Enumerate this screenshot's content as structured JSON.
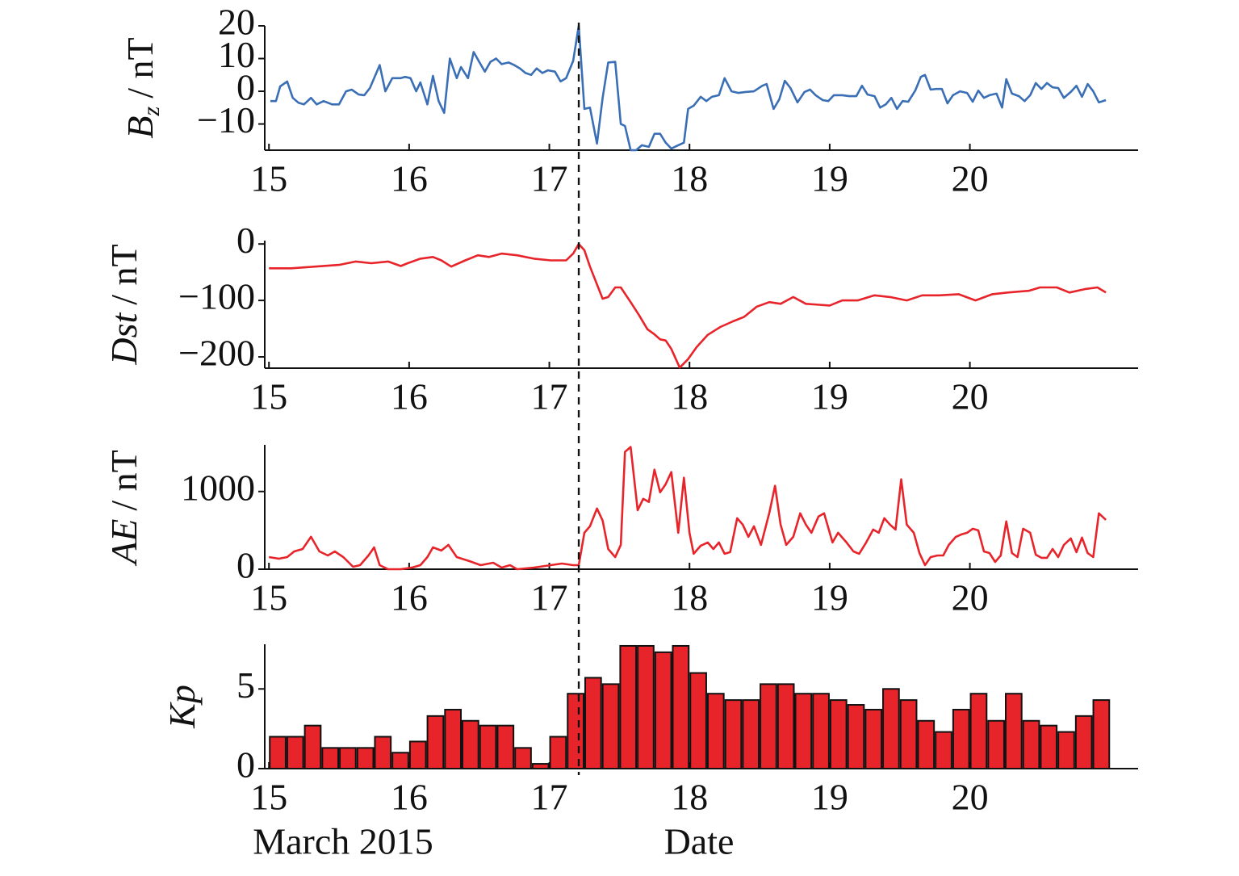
{
  "chart_data": [
    {
      "type": "line",
      "ylabel_symbol": "B",
      "ylabel_subscript": "z",
      "ylabel_unit": "/ nT",
      "color": "#3a6fb5",
      "xlim": [
        14.97,
        21.2
      ],
      "xticks": [
        15,
        16,
        17,
        18,
        19,
        20
      ],
      "ylim": [
        -18,
        20
      ],
      "yticks": [
        20,
        10,
        0,
        {
          "value": -10,
          "label": "−10"
        }
      ],
      "vline": 17.21,
      "x": [
        15.01,
        15.05,
        15.08,
        15.13,
        15.17,
        15.21,
        15.25,
        15.3,
        15.34,
        15.39,
        15.45,
        15.5,
        15.55,
        15.59,
        15.64,
        15.68,
        15.72,
        15.79,
        15.83,
        15.88,
        15.94,
        15.97,
        16.01,
        16.05,
        16.08,
        16.13,
        16.17,
        16.21,
        16.25,
        16.29,
        16.34,
        16.37,
        16.42,
        16.46,
        16.5,
        16.54,
        16.58,
        16.62,
        16.66,
        16.71,
        16.75,
        16.79,
        16.83,
        16.87,
        16.91,
        16.95,
        16.99,
        17.04,
        17.08,
        17.12,
        17.17,
        17.21,
        17.25,
        17.29,
        17.34,
        17.38,
        17.42,
        17.47,
        17.51,
        17.54,
        17.58,
        17.62,
        17.66,
        17.71,
        17.75,
        17.79,
        17.83,
        17.87,
        17.91,
        17.96,
        17.99,
        18.03,
        18.08,
        18.12,
        18.16,
        18.21,
        18.25,
        18.3,
        18.35,
        18.4,
        18.46,
        18.52,
        18.55,
        18.6,
        18.64,
        18.68,
        18.72,
        18.77,
        18.82,
        18.86,
        18.9,
        18.95,
        18.99,
        19.03,
        19.09,
        19.14,
        19.19,
        19.23,
        19.27,
        19.32,
        19.36,
        19.4,
        19.44,
        19.48,
        19.52,
        19.56,
        19.61,
        19.65,
        19.68,
        19.72,
        19.76,
        19.8,
        19.84,
        19.88,
        19.93,
        19.98,
        20.02,
        20.06,
        20.1,
        20.14,
        20.19,
        20.23,
        20.26,
        20.3,
        20.35,
        20.39,
        20.43,
        20.47,
        20.51,
        20.55,
        20.59,
        20.63,
        20.67,
        20.72,
        20.76,
        20.8,
        20.84,
        20.88,
        20.92,
        20.97
      ],
      "values": [
        -3,
        -3,
        1.5,
        3,
        -2,
        -3.5,
        -4,
        -2,
        -4,
        -3,
        -4,
        -4,
        0,
        0.5,
        -1,
        -1.2,
        1,
        8,
        0,
        4,
        4,
        4.4,
        4,
        0,
        2.7,
        -4,
        4.7,
        -3,
        -6.6,
        10,
        4,
        7.4,
        4,
        12,
        9,
        6,
        9,
        10,
        8.3,
        8.8,
        8,
        7,
        5.6,
        5,
        7,
        5.6,
        6.4,
        6,
        3,
        4,
        9.3,
        20,
        -5.4,
        -5,
        -16,
        -2,
        8.8,
        9,
        -10,
        -10.6,
        -18,
        -18,
        -16.5,
        -17,
        -13,
        -13,
        -15.7,
        -17.5,
        -16.7,
        -15.7,
        -5.4,
        -4.4,
        -1.7,
        -3,
        -1.7,
        -1.2,
        4,
        0,
        -0.5,
        -0.2,
        0,
        1.7,
        2.2,
        -5.4,
        -2.5,
        3.2,
        1,
        -3.4,
        -0.2,
        0.5,
        -1.2,
        -2.7,
        -3,
        -1.2,
        -1.2,
        -1.5,
        -1.5,
        1.7,
        -1,
        -1.5,
        -5,
        -4,
        -2,
        -5.4,
        -3,
        -3.2,
        0.2,
        4.4,
        5,
        0.5,
        0.7,
        0.7,
        -3.7,
        -1.2,
        0,
        -0.5,
        -3.2,
        0.2,
        -2,
        -1.2,
        -0.7,
        -5,
        3.7,
        -0.7,
        -1.5,
        -3,
        -1.2,
        2.5,
        0.7,
        2.5,
        1.2,
        1,
        -2,
        -0.2,
        1.7,
        -1.7,
        2.2,
        0,
        -3.4,
        -2.7
      ]
    },
    {
      "type": "line",
      "ylabel_symbol": "Dst",
      "ylabel_unit": "/ nT",
      "color": "#e8242b",
      "xlim": [
        14.97,
        21.2
      ],
      "xticks": [
        15,
        16,
        17,
        18,
        19,
        20
      ],
      "ylim": [
        -220,
        6
      ],
      "yticks": [
        0,
        {
          "value": -100,
          "label": "−100"
        },
        {
          "value": -200,
          "label": "−200"
        }
      ],
      "x": [
        15.0,
        15.16,
        15.33,
        15.5,
        15.62,
        15.73,
        15.85,
        15.94,
        15.99,
        16.08,
        16.17,
        16.23,
        16.3,
        16.4,
        16.49,
        16.57,
        16.66,
        16.77,
        16.89,
        17.01,
        17.12,
        17.17,
        17.21,
        17.25,
        17.29,
        17.38,
        17.42,
        17.47,
        17.51,
        17.58,
        17.64,
        17.7,
        17.75,
        17.79,
        17.83,
        17.87,
        17.93,
        17.99,
        18.05,
        18.13,
        18.22,
        18.31,
        18.39,
        18.48,
        18.57,
        18.65,
        18.74,
        18.83,
        19.0,
        19.09,
        19.2,
        19.32,
        19.43,
        19.55,
        19.66,
        19.78,
        19.92,
        20.04,
        20.16,
        20.27,
        20.42,
        20.5,
        20.62,
        20.71,
        20.82,
        20.91,
        20.97
      ],
      "values": [
        -43,
        -43,
        -40,
        -37,
        -31,
        -34,
        -31,
        -39,
        -34,
        -26,
        -23,
        -29,
        -40,
        -29,
        -20,
        -23,
        -17,
        -20,
        -26,
        -29,
        -29,
        -17,
        0,
        -11,
        -40,
        -97,
        -94,
        -77,
        -77,
        -103,
        -126,
        -151,
        -160,
        -169,
        -171,
        -186,
        -219,
        -204,
        -183,
        -161,
        -147,
        -137,
        -129,
        -111,
        -103,
        -106,
        -94,
        -106,
        -109,
        -100,
        -100,
        -91,
        -94,
        -100,
        -91,
        -91,
        -89,
        -100,
        -89,
        -86,
        -83,
        -77,
        -77,
        -86,
        -80,
        -77,
        -86
      ]
    },
    {
      "type": "line",
      "ylabel_symbol": "AE",
      "ylabel_unit": "/ nT",
      "color": "#e8242b",
      "xlim": [
        14.97,
        21.2
      ],
      "xticks": [
        15,
        16,
        17,
        18,
        19,
        20
      ],
      "ylim": [
        0,
        1600
      ],
      "yticks": [
        1000,
        0
      ],
      "x": [
        15.0,
        15.07,
        15.13,
        15.18,
        15.24,
        15.3,
        15.36,
        15.42,
        15.47,
        15.53,
        15.6,
        15.65,
        15.71,
        15.75,
        15.79,
        15.85,
        15.94,
        16.02,
        16.08,
        16.13,
        16.17,
        16.23,
        16.28,
        16.34,
        16.43,
        16.51,
        16.6,
        16.66,
        16.72,
        16.77,
        16.89,
        17.01,
        17.09,
        17.17,
        17.21,
        17.25,
        17.29,
        17.34,
        17.38,
        17.42,
        17.47,
        17.51,
        17.54,
        17.58,
        17.63,
        17.67,
        17.71,
        17.75,
        17.79,
        17.83,
        17.87,
        17.92,
        17.96,
        18.0,
        18.03,
        18.08,
        18.13,
        18.17,
        18.21,
        18.25,
        18.29,
        18.34,
        18.38,
        18.42,
        18.46,
        18.51,
        18.57,
        18.61,
        18.65,
        18.69,
        18.74,
        18.79,
        18.83,
        18.87,
        18.92,
        18.96,
        19.02,
        19.06,
        19.12,
        19.17,
        19.21,
        19.26,
        19.31,
        19.35,
        19.39,
        19.43,
        19.47,
        19.51,
        19.55,
        19.6,
        19.64,
        19.68,
        19.72,
        19.77,
        19.81,
        19.85,
        19.9,
        19.94,
        19.98,
        20.02,
        20.06,
        20.1,
        20.14,
        20.18,
        20.22,
        20.26,
        20.3,
        20.34,
        20.38,
        20.43,
        20.47,
        20.51,
        20.55,
        20.59,
        20.63,
        20.67,
        20.72,
        20.76,
        20.8,
        20.84,
        20.88,
        20.92,
        20.97
      ],
      "values": [
        156,
        135,
        156,
        229,
        260,
        417,
        229,
        177,
        229,
        156,
        31,
        52,
        177,
        281,
        52,
        0,
        0,
        21,
        52,
        156,
        281,
        240,
        313,
        156,
        104,
        52,
        83,
        21,
        52,
        0,
        21,
        52,
        73,
        52,
        52,
        469,
        552,
        781,
        625,
        260,
        156,
        313,
        1510,
        1573,
        760,
        906,
        865,
        1281,
        990,
        1094,
        1250,
        469,
        1177,
        469,
        198,
        302,
        344,
        260,
        344,
        198,
        219,
        656,
        573,
        417,
        552,
        313,
        729,
        1073,
        573,
        313,
        417,
        719,
        573,
        469,
        677,
        719,
        344,
        469,
        344,
        229,
        198,
        344,
        510,
        469,
        656,
        573,
        510,
        1156,
        573,
        469,
        208,
        52,
        156,
        177,
        177,
        313,
        417,
        448,
        469,
        521,
        500,
        229,
        208,
        94,
        177,
        615,
        208,
        156,
        521,
        469,
        187,
        146,
        146,
        260,
        156,
        313,
        396,
        219,
        406,
        208,
        156,
        719,
        635
      ]
    },
    {
      "type": "histogram",
      "ylabel_symbol": "Kp",
      "color": "#e8242b",
      "xlabel": "Date",
      "xlabel_left": "March 2015",
      "xlim": [
        14.97,
        21.2
      ],
      "xticks": [
        15,
        16,
        17,
        18,
        19,
        20
      ],
      "ylim": [
        0,
        7.8
      ],
      "yticks": [
        5,
        0
      ],
      "bins": [
        15,
        15.125,
        15.25,
        15.375,
        15.5,
        15.625,
        15.75,
        15.875,
        16,
        16.125,
        16.25,
        16.375,
        16.5,
        16.625,
        16.75,
        16.875,
        17,
        17.125,
        17.25,
        17.375,
        17.5,
        17.625,
        17.75,
        17.875,
        18,
        18.125,
        18.25,
        18.375,
        18.5,
        18.625,
        18.75,
        18.875,
        19,
        19.125,
        19.25,
        19.375,
        19.5,
        19.625,
        19.75,
        19.875,
        20,
        20.125,
        20.25,
        20.375,
        20.5,
        20.625,
        20.75,
        20.875,
        21
      ],
      "values": [
        2,
        2,
        2.7,
        1.3,
        1.3,
        1.3,
        2,
        1,
        1.7,
        3.3,
        3.7,
        3,
        2.7,
        2.7,
        1.3,
        0.3,
        2,
        4.7,
        5.7,
        5.3,
        7.7,
        7.7,
        7.3,
        7.7,
        6,
        4.7,
        4.3,
        4.3,
        5.3,
        5.3,
        4.7,
        4.7,
        4.3,
        4,
        3.7,
        5,
        4.3,
        3,
        2.3,
        3.7,
        4.7,
        3,
        4.7,
        3,
        2.7,
        2.3,
        3.3,
        4.3
      ]
    }
  ]
}
